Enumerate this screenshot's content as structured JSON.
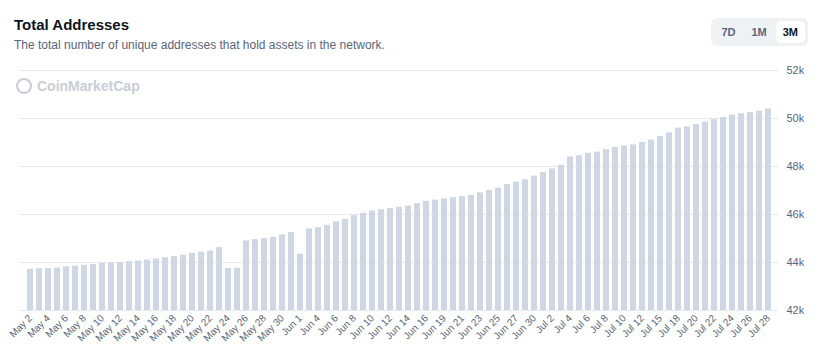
{
  "chart_data": {
    "type": "bar",
    "title": "Total Addresses",
    "subtitle": "The total number of unique addresses that hold assets in the network.",
    "buttons": [
      "7D",
      "1M",
      "3M"
    ],
    "selected_button": "3M",
    "watermark": "CoinMarketCap",
    "color": "#cfd6e4",
    "grid": true,
    "categories": [
      "May 2",
      null,
      "May 4",
      null,
      "May 6",
      null,
      "May 8",
      null,
      "May 10",
      null,
      "May 12",
      null,
      "May 14",
      null,
      "May 16",
      null,
      "May 18",
      null,
      "May 20",
      null,
      "May 22",
      null,
      "May 24",
      null,
      "May 26",
      null,
      "May 28",
      null,
      "May 30",
      null,
      "Jun 1",
      null,
      "Jun 4",
      null,
      "Jun 6",
      null,
      "Jun 8",
      null,
      "Jun 10",
      null,
      "Jun 12",
      null,
      "Jun 14",
      null,
      "Jun 16",
      null,
      "Jun 19",
      null,
      "Jun 21",
      null,
      "Jun 23",
      null,
      "Jun 25",
      null,
      "Jun 27",
      null,
      "Jun 30",
      null,
      "Jul 2",
      null,
      "Jul 4",
      null,
      "Jul 6",
      null,
      "Jul 8",
      null,
      "Jul 10",
      null,
      "Jul 12",
      null,
      "Jul 15",
      null,
      "Jul 18",
      null,
      "Jul 20",
      null,
      "Jul 22",
      null,
      "Jul 24",
      null,
      "Jul 26",
      null,
      "Jul 28"
    ],
    "values": [
      43720,
      43740,
      43750,
      43770,
      43820,
      43850,
      43880,
      43920,
      43960,
      43980,
      44000,
      44030,
      44060,
      44100,
      44150,
      44200,
      44250,
      44300,
      44380,
      44430,
      44480,
      44620,
      43750,
      43760,
      44900,
      44950,
      45000,
      45050,
      45150,
      45250,
      44350,
      45400,
      45450,
      45550,
      45700,
      45800,
      45950,
      46050,
      46150,
      46200,
      46250,
      46300,
      46350,
      46450,
      46550,
      46600,
      46650,
      46700,
      46750,
      46800,
      46900,
      47000,
      47100,
      47250,
      47350,
      47450,
      47600,
      47750,
      47900,
      48050,
      48400,
      48450,
      48550,
      48600,
      48700,
      48800,
      48850,
      48900,
      49000,
      49100,
      49250,
      49400,
      49600,
      49650,
      49750,
      49850,
      49950,
      50050,
      50150,
      50200,
      50250,
      50300,
      50400
    ],
    "ylim": [
      42000,
      52000
    ],
    "yticks": [
      {
        "value": 42000,
        "label": "42k"
      },
      {
        "value": 44000,
        "label": "44k"
      },
      {
        "value": 46000,
        "label": "46k"
      },
      {
        "value": 48000,
        "label": "48k"
      },
      {
        "value": 50000,
        "label": "50k"
      },
      {
        "value": 52000,
        "label": "52k"
      }
    ]
  }
}
